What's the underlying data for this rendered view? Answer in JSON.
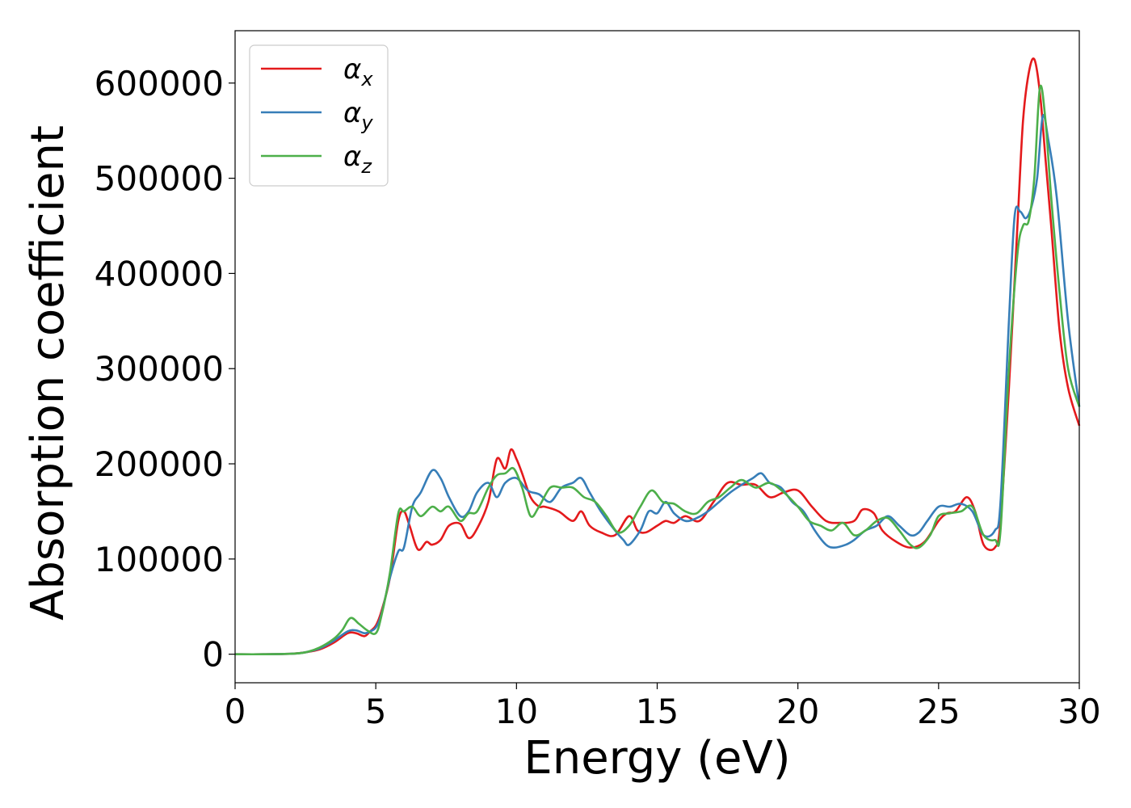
{
  "chart_data": {
    "type": "line",
    "title": "",
    "xlabel": "Energy (eV)",
    "ylabel": "Absorption coefficient",
    "xlim": [
      0,
      30
    ],
    "ylim": [
      -30000,
      655000
    ],
    "xticks": [
      0,
      5,
      10,
      15,
      20,
      25,
      30
    ],
    "xtick_labels": [
      "0",
      "5",
      "10",
      "15",
      "20",
      "25",
      "30"
    ],
    "yticks": [
      0,
      100000,
      200000,
      300000,
      400000,
      500000,
      600000
    ],
    "ytick_labels": [
      "0",
      "100000",
      "200000",
      "300000",
      "400000",
      "500000",
      "600000"
    ],
    "grid": false,
    "legend_position": "top-left",
    "series": [
      {
        "name": "α",
        "subscript": "x",
        "color": "#e41a1c",
        "x": [
          0,
          1,
          2,
          2.5,
          3,
          3.5,
          4,
          4.3,
          4.6,
          4.8,
          5,
          5.2,
          5.5,
          5.8,
          6,
          6.2,
          6.5,
          6.8,
          7,
          7.3,
          7.6,
          8,
          8.3,
          8.6,
          9,
          9.3,
          9.6,
          9.8,
          10,
          10.2,
          10.5,
          10.8,
          11,
          11.5,
          12,
          12.3,
          12.6,
          13,
          13.5,
          14,
          14.3,
          14.6,
          15,
          15.3,
          15.6,
          16,
          16.5,
          17,
          17.5,
          18,
          18.5,
          19,
          19.5,
          20,
          20.5,
          21,
          21.5,
          22,
          22.3,
          22.7,
          23,
          23.5,
          24,
          24.5,
          25,
          25.3,
          25.6,
          26,
          26.3,
          26.6,
          27,
          27.2,
          27.5,
          27.8,
          28,
          28.2,
          28.4,
          28.6,
          28.8,
          29,
          29.3,
          29.6,
          30
        ],
        "y": [
          0,
          0,
          500,
          2000,
          5000,
          12000,
          22000,
          22000,
          19000,
          24000,
          30000,
          45000,
          80000,
          140000,
          150000,
          135000,
          110000,
          118000,
          115000,
          120000,
          135000,
          137000,
          122000,
          132000,
          160000,
          205000,
          195000,
          215000,
          205000,
          190000,
          165000,
          155000,
          155000,
          150000,
          140000,
          150000,
          135000,
          128000,
          125000,
          145000,
          130000,
          128000,
          135000,
          140000,
          138000,
          145000,
          140000,
          160000,
          180000,
          178000,
          178000,
          165000,
          170000,
          172000,
          155000,
          140000,
          138000,
          140000,
          152000,
          148000,
          130000,
          118000,
          112000,
          118000,
          140000,
          148000,
          150000,
          165000,
          150000,
          115000,
          112000,
          140000,
          280000,
          450000,
          560000,
          610000,
          625000,
          590000,
          520000,
          450000,
          340000,
          280000,
          240000
        ]
      },
      {
        "name": "α",
        "subscript": "y",
        "color": "#377eb8",
        "x": [
          0,
          1,
          2,
          2.5,
          3,
          3.5,
          4,
          4.3,
          4.6,
          4.8,
          5,
          5.2,
          5.5,
          5.8,
          6,
          6.3,
          6.6,
          7,
          7.3,
          7.6,
          8,
          8.3,
          8.6,
          9,
          9.3,
          9.6,
          10,
          10.4,
          10.8,
          11.2,
          11.6,
          12,
          12.3,
          12.6,
          13,
          13.5,
          13.8,
          14,
          14.4,
          14.7,
          15,
          15.3,
          15.6,
          16,
          16.4,
          16.8,
          17.2,
          17.6,
          18,
          18.4,
          18.7,
          19,
          19.4,
          19.8,
          20.2,
          20.6,
          21,
          21.3,
          21.7,
          22,
          22.4,
          22.8,
          23.2,
          23.6,
          24,
          24.3,
          24.6,
          25,
          25.4,
          25.8,
          26.2,
          26.6,
          27,
          27.2,
          27.5,
          27.7,
          27.9,
          28.1,
          28.3,
          28.5,
          28.7,
          28.9,
          29.2,
          29.6,
          30
        ],
        "y": [
          0,
          0,
          500,
          2000,
          6000,
          14000,
          24000,
          25000,
          22000,
          24000,
          28000,
          42000,
          80000,
          108000,
          112000,
          155000,
          170000,
          193000,
          185000,
          165000,
          145000,
          150000,
          170000,
          180000,
          165000,
          180000,
          185000,
          172000,
          168000,
          160000,
          175000,
          180000,
          185000,
          170000,
          150000,
          130000,
          120000,
          115000,
          130000,
          150000,
          148000,
          160000,
          148000,
          140000,
          143000,
          150000,
          160000,
          170000,
          178000,
          185000,
          190000,
          180000,
          175000,
          160000,
          150000,
          130000,
          115000,
          112000,
          115000,
          120000,
          130000,
          135000,
          145000,
          135000,
          125000,
          128000,
          140000,
          155000,
          155000,
          158000,
          150000,
          125000,
          130000,
          160000,
          350000,
          460000,
          465000,
          458000,
          470000,
          500000,
          565000,
          540000,
          480000,
          350000,
          260000
        ]
      },
      {
        "name": "α",
        "subscript": "z",
        "color": "#4daf4a",
        "x": [
          0,
          1,
          2,
          2.5,
          3,
          3.5,
          3.8,
          4.1,
          4.4,
          4.7,
          5,
          5.2,
          5.5,
          5.8,
          6,
          6.3,
          6.6,
          7,
          7.3,
          7.6,
          8,
          8.3,
          8.6,
          9,
          9.3,
          9.6,
          9.9,
          10.2,
          10.5,
          10.8,
          11.2,
          11.6,
          12,
          12.4,
          12.8,
          13.2,
          13.6,
          14,
          14.4,
          14.8,
          15.2,
          15.6,
          16,
          16.4,
          16.8,
          17.2,
          17.6,
          18,
          18.5,
          19,
          19.5,
          20,
          20.4,
          20.8,
          21.2,
          21.6,
          22,
          22.4,
          22.8,
          23.2,
          23.6,
          24,
          24.3,
          24.7,
          25,
          25.4,
          25.8,
          26.2,
          26.6,
          27,
          27.2,
          27.5,
          27.8,
          28,
          28.2,
          28.4,
          28.6,
          28.8,
          29,
          29.3,
          29.6,
          30
        ],
        "y": [
          0,
          0,
          500,
          2000,
          7000,
          16000,
          25000,
          38000,
          32000,
          25000,
          22000,
          40000,
          85000,
          148000,
          150000,
          155000,
          145000,
          155000,
          150000,
          155000,
          140000,
          148000,
          150000,
          175000,
          188000,
          190000,
          195000,
          175000,
          145000,
          155000,
          175000,
          175000,
          175000,
          165000,
          160000,
          145000,
          128000,
          135000,
          155000,
          172000,
          160000,
          158000,
          150000,
          148000,
          160000,
          165000,
          175000,
          183000,
          175000,
          180000,
          170000,
          155000,
          140000,
          135000,
          130000,
          138000,
          125000,
          130000,
          140000,
          143000,
          130000,
          115000,
          112000,
          125000,
          145000,
          148000,
          150000,
          155000,
          125000,
          120000,
          130000,
          300000,
          420000,
          450000,
          455000,
          500000,
          595000,
          560000,
          480000,
          380000,
          300000,
          260000
        ]
      }
    ]
  }
}
